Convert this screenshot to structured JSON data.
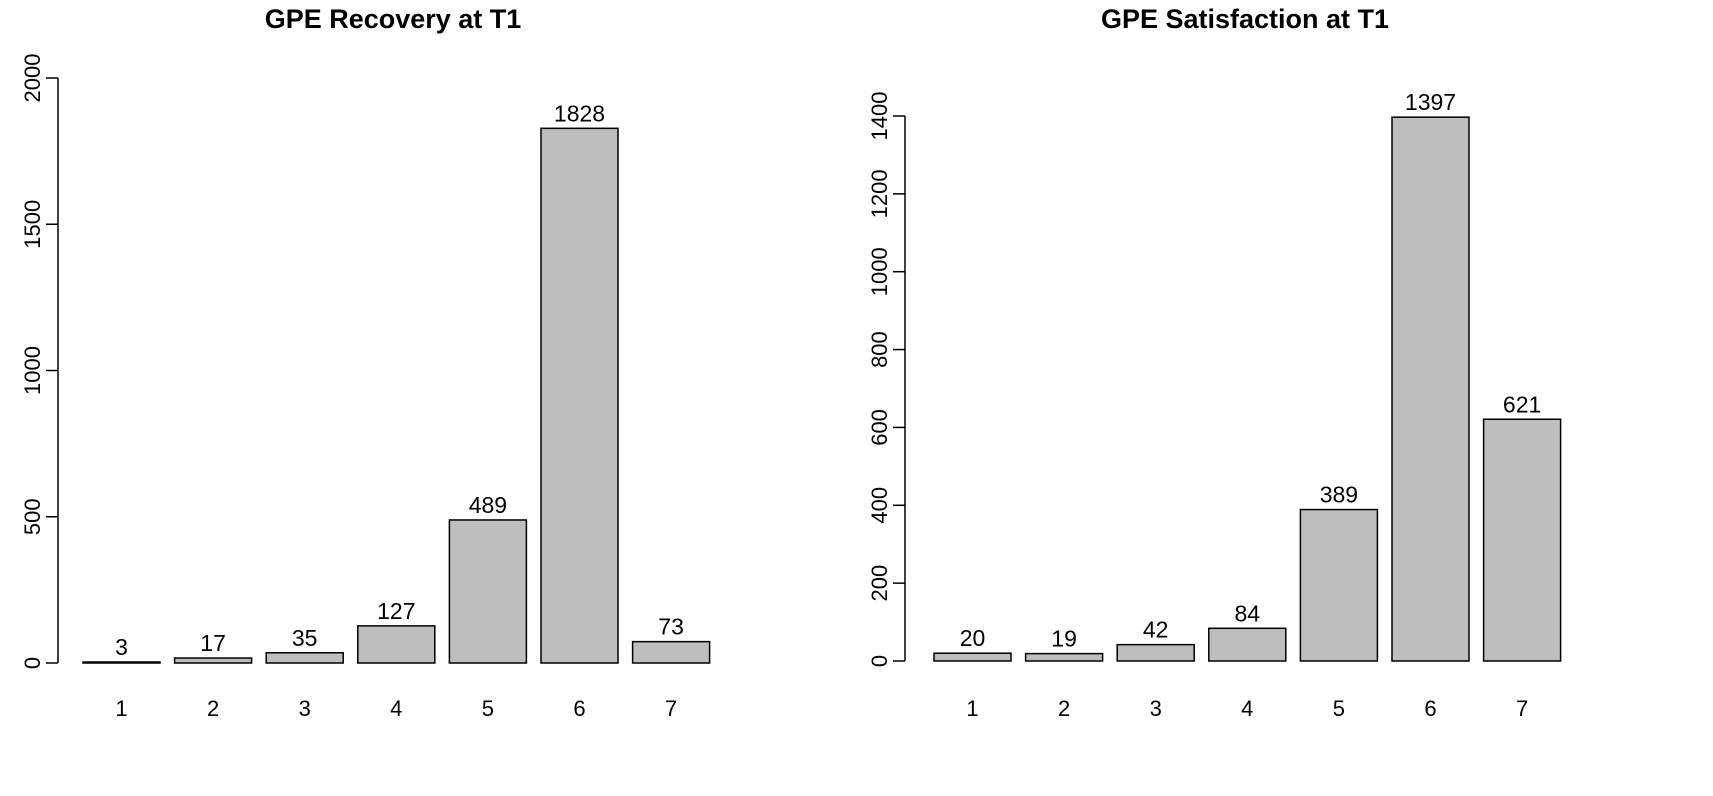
{
  "chart_data": [
    {
      "type": "bar",
      "title": "GPE Recovery at T1",
      "categories": [
        "1",
        "2",
        "3",
        "4",
        "5",
        "6",
        "7"
      ],
      "values": [
        3,
        17,
        35,
        127,
        489,
        1828,
        73
      ],
      "data_labels": [
        "3",
        "17",
        "35",
        "127",
        "489",
        "1828",
        "73"
      ],
      "xlabel": "",
      "ylabel": "",
      "ylim": [
        0,
        2000
      ],
      "yticks": [
        0,
        500,
        1000,
        1500,
        2000
      ],
      "ytick_labels": [
        "0",
        "500",
        "1000",
        "1500",
        "2000"
      ],
      "grid": false,
      "bar_color": "#bebebe",
      "edge_color": "#000000"
    },
    {
      "type": "bar",
      "title": "GPE Satisfaction at T1",
      "categories": [
        "1",
        "2",
        "3",
        "4",
        "5",
        "6",
        "7"
      ],
      "values": [
        20,
        19,
        42,
        84,
        389,
        1397,
        621
      ],
      "data_labels": [
        "20",
        "19",
        "42",
        "84",
        "389",
        "1397",
        "621"
      ],
      "xlabel": "",
      "ylabel": "",
      "ylim": [
        0,
        1400
      ],
      "yticks": [
        0,
        200,
        400,
        600,
        800,
        1000,
        1200,
        1400
      ],
      "ytick_labels": [
        "0",
        "200",
        "400",
        "600",
        "800",
        "1000",
        "1200",
        "1400"
      ],
      "grid": false,
      "bar_color": "#bebebe",
      "edge_color": "#000000"
    }
  ]
}
